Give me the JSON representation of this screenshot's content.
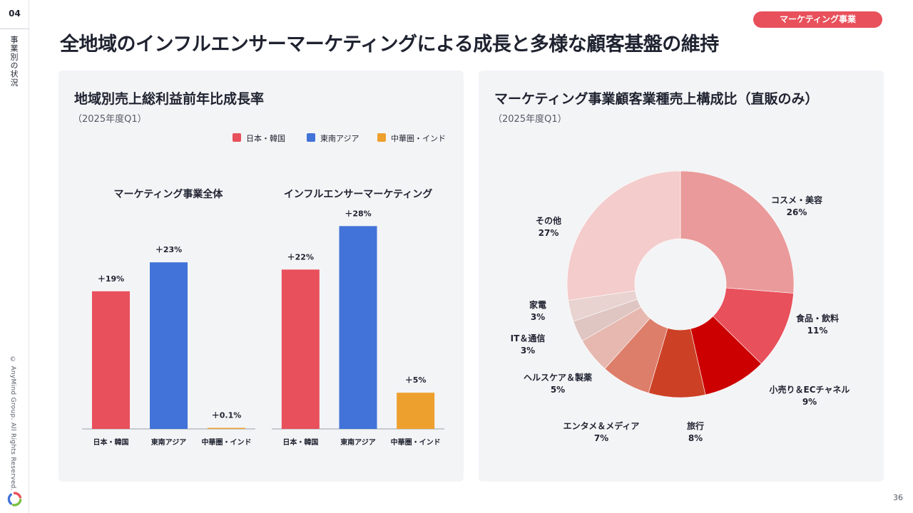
{
  "sidebar": {
    "section_number": "04",
    "section_label": "事業別の状況",
    "copyright": "© AnyMind Group. All Rights Reserved.",
    "logo_icon": "anymind-logo-icon"
  },
  "header": {
    "badge": "マーケティング事業",
    "title": "全地域のインフルエンサーマーケティングによる成長と多様な顧客基盤の維持"
  },
  "footer": {
    "page_number": "36"
  },
  "colors": {
    "japan_korea": "#e8505b",
    "southeast_asia": "#4173d9",
    "greater_china_india": "#eea02e",
    "badge": "#e8505b"
  },
  "left_panel": {
    "title": "地域別売上総利益前年比成長率",
    "subtitle": "（2025年度Q1）"
  },
  "right_panel": {
    "title": "マーケティング事業顧客業種売上構成比（直販のみ）",
    "subtitle": "（2025年度Q1）"
  },
  "chart_data": [
    {
      "type": "bar",
      "title": "マーケティング事業全体",
      "categories": [
        "日本・韓国",
        "東南アジア",
        "中華圏・インド"
      ],
      "values": [
        19,
        23,
        0.1
      ],
      "value_labels": [
        "＋19%",
        "＋23%",
        "＋0.1%"
      ],
      "legend": [
        "日本・韓国",
        "東南アジア",
        "中華圏・インド"
      ],
      "legend_placement": "top-right",
      "ylim": [
        0,
        30
      ]
    },
    {
      "type": "bar",
      "title": "インフルエンサーマーケティング",
      "categories": [
        "日本・韓国",
        "東南アジア",
        "中華圏・インド"
      ],
      "values": [
        22,
        28,
        5
      ],
      "value_labels": [
        "＋22%",
        "＋28%",
        "＋5%"
      ],
      "ylim": [
        0,
        30
      ]
    },
    {
      "type": "pie",
      "donut": true,
      "labels": [
        "コスメ・美容",
        "食品・飲料",
        "小売り＆ECチャネル",
        "旅行",
        "エンタメ＆メディア",
        "ヘルスケア＆製薬",
        "IT＆通信",
        "家電",
        "その他"
      ],
      "values": [
        26,
        11,
        9,
        8,
        7,
        5,
        3,
        3,
        27
      ],
      "value_labels": [
        "26%",
        "11%",
        "9%",
        "8%",
        "7%",
        "5%",
        "3%",
        "3%",
        "27%"
      ],
      "colors": [
        "#ea9a9a",
        "#e8505b",
        "#cc0000",
        "#cc4125",
        "#dd7e6b",
        "#e6b8af",
        "#dfc6c3",
        "#e8d3d1",
        "#f4cccc"
      ]
    }
  ]
}
